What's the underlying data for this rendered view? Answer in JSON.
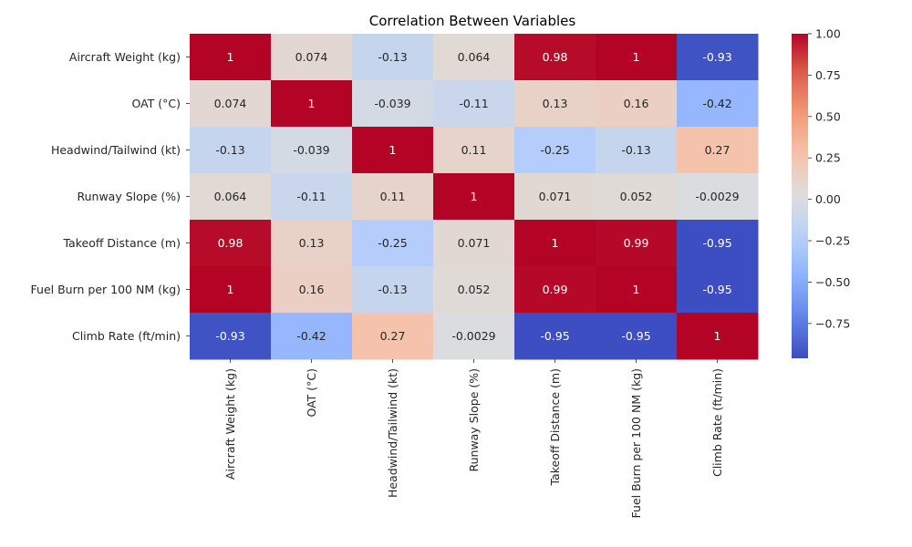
{
  "chart_data": {
    "type": "heatmap",
    "title": "Correlation Between Variables",
    "row_labels": [
      "Aircraft Weight (kg)",
      "OAT (°C)",
      "Headwind/Tailwind (kt)",
      "Runway Slope (%)",
      "Takeoff Distance (m)",
      "Fuel Burn per 100 NM (kg)",
      "Climb Rate (ft/min)"
    ],
    "col_labels": [
      "Aircraft Weight (kg)",
      "OAT (°C)",
      "Headwind/Tailwind (kt)",
      "Runway Slope (%)",
      "Takeoff Distance (m)",
      "Fuel Burn per 100 NM (kg)",
      "Climb Rate (ft/min)"
    ],
    "values": [
      [
        1,
        0.074,
        -0.13,
        0.064,
        0.98,
        1,
        -0.93
      ],
      [
        0.074,
        1,
        -0.039,
        -0.11,
        0.13,
        0.16,
        -0.42
      ],
      [
        -0.13,
        -0.039,
        1,
        0.11,
        -0.25,
        -0.13,
        0.27
      ],
      [
        0.064,
        -0.11,
        0.11,
        1,
        0.071,
        0.052,
        -0.0029
      ],
      [
        0.98,
        0.13,
        -0.25,
        0.071,
        1,
        0.99,
        -0.95
      ],
      [
        1,
        0.16,
        -0.13,
        0.052,
        0.99,
        1,
        -0.95
      ],
      [
        -0.93,
        -0.42,
        0.27,
        -0.0029,
        -0.95,
        -0.95,
        1
      ]
    ],
    "value_labels": [
      [
        "1",
        "0.074",
        "-0.13",
        "0.064",
        "0.98",
        "1",
        "-0.93"
      ],
      [
        "0.074",
        "1",
        "-0.039",
        "-0.11",
        "0.13",
        "0.16",
        "-0.42"
      ],
      [
        "-0.13",
        "-0.039",
        "1",
        "0.11",
        "-0.25",
        "-0.13",
        "0.27"
      ],
      [
        "0.064",
        "-0.11",
        "0.11",
        "1",
        "0.071",
        "0.052",
        "-0.0029"
      ],
      [
        "0.98",
        "0.13",
        "-0.25",
        "0.071",
        "1",
        "0.99",
        "-0.95"
      ],
      [
        "1",
        "0.16",
        "-0.13",
        "0.052",
        "0.99",
        "1",
        "-0.95"
      ],
      [
        "-0.93",
        "-0.42",
        "0.27",
        "-0.0029",
        "-0.95",
        "-0.95",
        "1"
      ]
    ],
    "colormap": "coolwarm",
    "vmin": -0.96,
    "vmax": 1.0,
    "colorbar_ticks": [
      1.0,
      0.75,
      0.5,
      0.25,
      0.0,
      -0.25,
      -0.5,
      -0.75
    ],
    "colorbar_tick_labels": [
      "1.00",
      "0.75",
      "0.50",
      "0.25",
      "0.00",
      "−0.25",
      "−0.50",
      "−0.75"
    ],
    "grid": false,
    "legend": "colorbar-right"
  }
}
